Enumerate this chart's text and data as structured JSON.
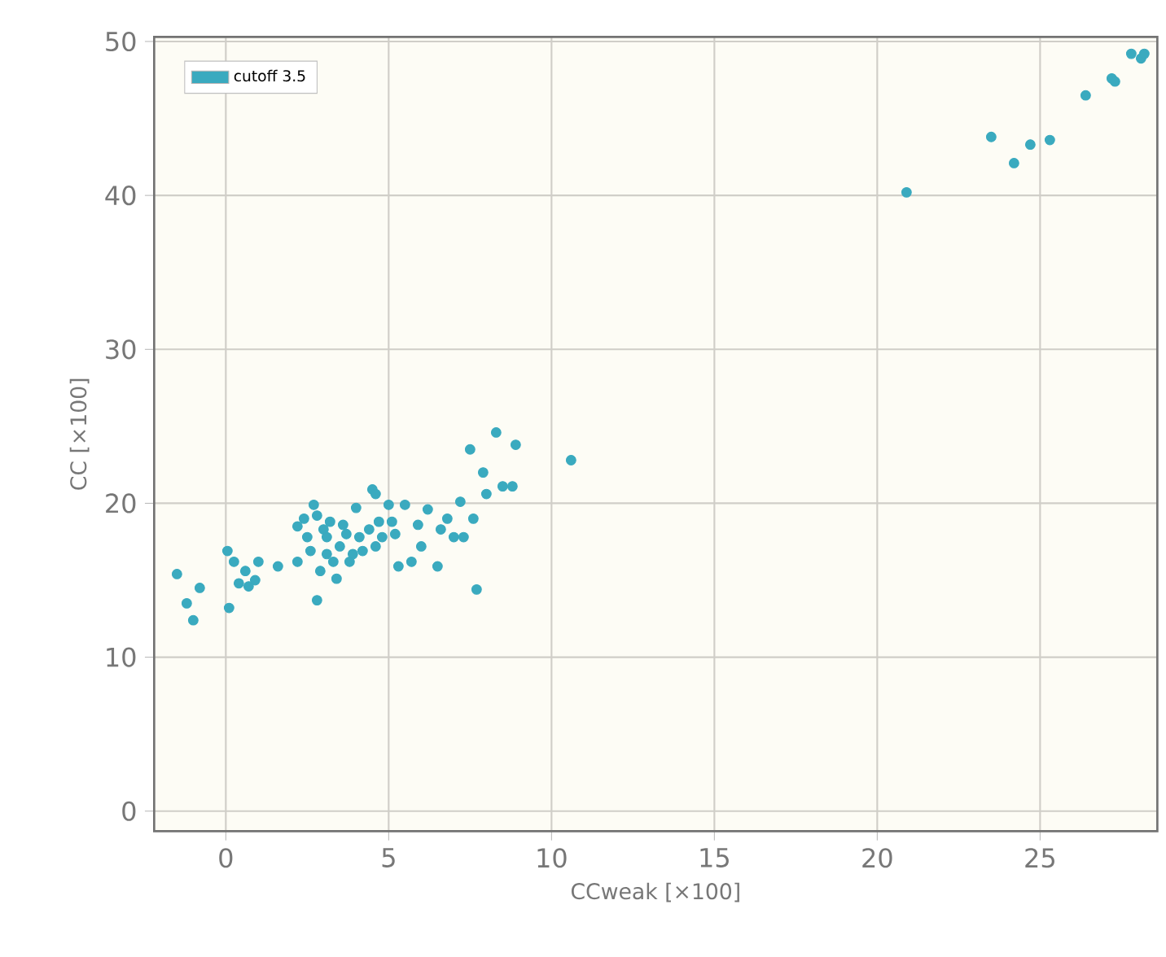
{
  "chart_data": {
    "type": "scatter",
    "xlabel": "CCweak [×100]",
    "ylabel": "CC [×100]",
    "xlim": [
      -2.2,
      28.6
    ],
    "ylim": [
      -1.3,
      50.3
    ],
    "xticks": [
      0,
      5,
      10,
      15,
      20,
      25
    ],
    "yticks": [
      0,
      10,
      20,
      30,
      40,
      50
    ],
    "grid": true,
    "legend": "top left",
    "marker": "circle",
    "series": [
      {
        "name": "cutoff 3.5",
        "color": "#3aaabf",
        "x": [
          -1.5,
          -1.2,
          -1.0,
          -0.8,
          0.05,
          0.1,
          0.25,
          0.4,
          0.6,
          0.7,
          0.9,
          1.0,
          1.6,
          2.2,
          2.2,
          2.4,
          2.5,
          2.6,
          2.7,
          2.8,
          2.8,
          2.9,
          3.0,
          3.1,
          3.1,
          3.2,
          3.3,
          3.4,
          3.5,
          3.6,
          3.7,
          3.8,
          3.9,
          4.0,
          4.1,
          4.2,
          4.4,
          4.5,
          4.6,
          4.6,
          4.7,
          4.8,
          5.0,
          5.1,
          5.2,
          5.3,
          5.5,
          5.7,
          5.9,
          6.0,
          6.2,
          6.5,
          6.6,
          6.8,
          7.0,
          7.2,
          7.3,
          7.5,
          7.6,
          7.7,
          7.9,
          8.0,
          8.3,
          8.5,
          8.8,
          8.9,
          10.6,
          20.9,
          23.5,
          24.2,
          24.7,
          25.3,
          26.4,
          27.2,
          27.3,
          27.8,
          28.1,
          28.2
        ],
        "values": [
          15.4,
          13.5,
          12.4,
          14.5,
          16.9,
          13.2,
          16.2,
          14.8,
          15.6,
          14.6,
          15.0,
          16.2,
          15.9,
          16.2,
          18.5,
          19.0,
          17.8,
          16.9,
          19.9,
          19.2,
          13.7,
          15.6,
          18.3,
          17.8,
          16.7,
          18.8,
          16.2,
          15.1,
          17.2,
          18.6,
          18.0,
          16.2,
          16.7,
          19.7,
          17.8,
          16.9,
          18.3,
          20.9,
          20.6,
          17.2,
          18.8,
          17.8,
          19.9,
          18.8,
          18.0,
          15.9,
          19.9,
          16.2,
          18.6,
          17.2,
          19.6,
          15.9,
          18.3,
          19.0,
          17.8,
          20.1,
          17.8,
          23.5,
          19.0,
          14.4,
          22.0,
          20.6,
          24.6,
          21.1,
          21.1,
          23.8,
          22.8,
          40.2,
          43.8,
          42.1,
          43.3,
          43.6,
          46.5,
          47.6,
          47.4,
          49.2,
          48.9,
          49.2
        ]
      }
    ]
  }
}
